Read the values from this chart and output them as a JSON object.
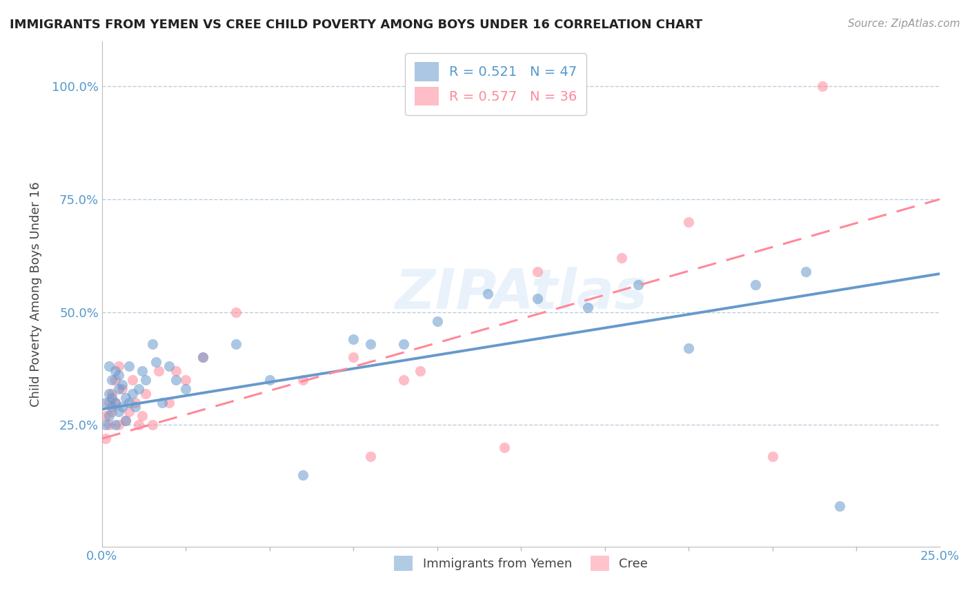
{
  "title": "IMMIGRANTS FROM YEMEN VS CREE CHILD POVERTY AMONG BOYS UNDER 16 CORRELATION CHART",
  "source": "Source: ZipAtlas.com",
  "ylabel": "Child Poverty Among Boys Under 16",
  "xlim": [
    0.0,
    0.25
  ],
  "ylim": [
    -0.02,
    1.1
  ],
  "yticks": [
    0.25,
    0.5,
    0.75,
    1.0
  ],
  "yticklabels": [
    "25.0%",
    "50.0%",
    "75.0%",
    "100.0%"
  ],
  "blue_R": 0.521,
  "blue_N": 47,
  "pink_R": 0.577,
  "pink_N": 36,
  "blue_color": "#6699CC",
  "pink_color": "#FF8899",
  "axis_color": "#5599CC",
  "grid_color": "#BBCCDD",
  "watermark": "ZIPAtlas",
  "blue_scatter_x": [
    0.001,
    0.001,
    0.002,
    0.002,
    0.002,
    0.003,
    0.003,
    0.003,
    0.004,
    0.004,
    0.004,
    0.005,
    0.005,
    0.005,
    0.006,
    0.006,
    0.007,
    0.007,
    0.008,
    0.008,
    0.009,
    0.01,
    0.011,
    0.012,
    0.013,
    0.015,
    0.016,
    0.018,
    0.02,
    0.022,
    0.025,
    0.03,
    0.04,
    0.05,
    0.06,
    0.075,
    0.08,
    0.09,
    0.1,
    0.115,
    0.13,
    0.145,
    0.16,
    0.175,
    0.195,
    0.21,
    0.22
  ],
  "blue_scatter_y": [
    0.3,
    0.25,
    0.32,
    0.27,
    0.38,
    0.29,
    0.31,
    0.35,
    0.3,
    0.25,
    0.37,
    0.33,
    0.28,
    0.36,
    0.29,
    0.34,
    0.26,
    0.31,
    0.38,
    0.3,
    0.32,
    0.29,
    0.33,
    0.37,
    0.35,
    0.43,
    0.39,
    0.3,
    0.38,
    0.35,
    0.33,
    0.4,
    0.43,
    0.35,
    0.14,
    0.44,
    0.43,
    0.43,
    0.48,
    0.54,
    0.53,
    0.51,
    0.56,
    0.42,
    0.56,
    0.59,
    0.07
  ],
  "pink_scatter_x": [
    0.001,
    0.001,
    0.002,
    0.002,
    0.003,
    0.003,
    0.004,
    0.004,
    0.005,
    0.005,
    0.006,
    0.007,
    0.008,
    0.009,
    0.01,
    0.011,
    0.012,
    0.013,
    0.015,
    0.017,
    0.02,
    0.022,
    0.025,
    0.03,
    0.04,
    0.06,
    0.075,
    0.08,
    0.09,
    0.095,
    0.12,
    0.13,
    0.155,
    0.175,
    0.2,
    0.215
  ],
  "pink_scatter_y": [
    0.27,
    0.22,
    0.3,
    0.25,
    0.32,
    0.28,
    0.35,
    0.3,
    0.25,
    0.38,
    0.33,
    0.26,
    0.28,
    0.35,
    0.3,
    0.25,
    0.27,
    0.32,
    0.25,
    0.37,
    0.3,
    0.37,
    0.35,
    0.4,
    0.5,
    0.35,
    0.4,
    0.18,
    0.35,
    0.37,
    0.2,
    0.59,
    0.62,
    0.7,
    0.18,
    1.0
  ],
  "blue_line_x": [
    0.0,
    0.25
  ],
  "blue_line_y": [
    0.285,
    0.585
  ],
  "pink_line_x": [
    0.0,
    0.25
  ],
  "pink_line_y": [
    0.22,
    0.75
  ]
}
